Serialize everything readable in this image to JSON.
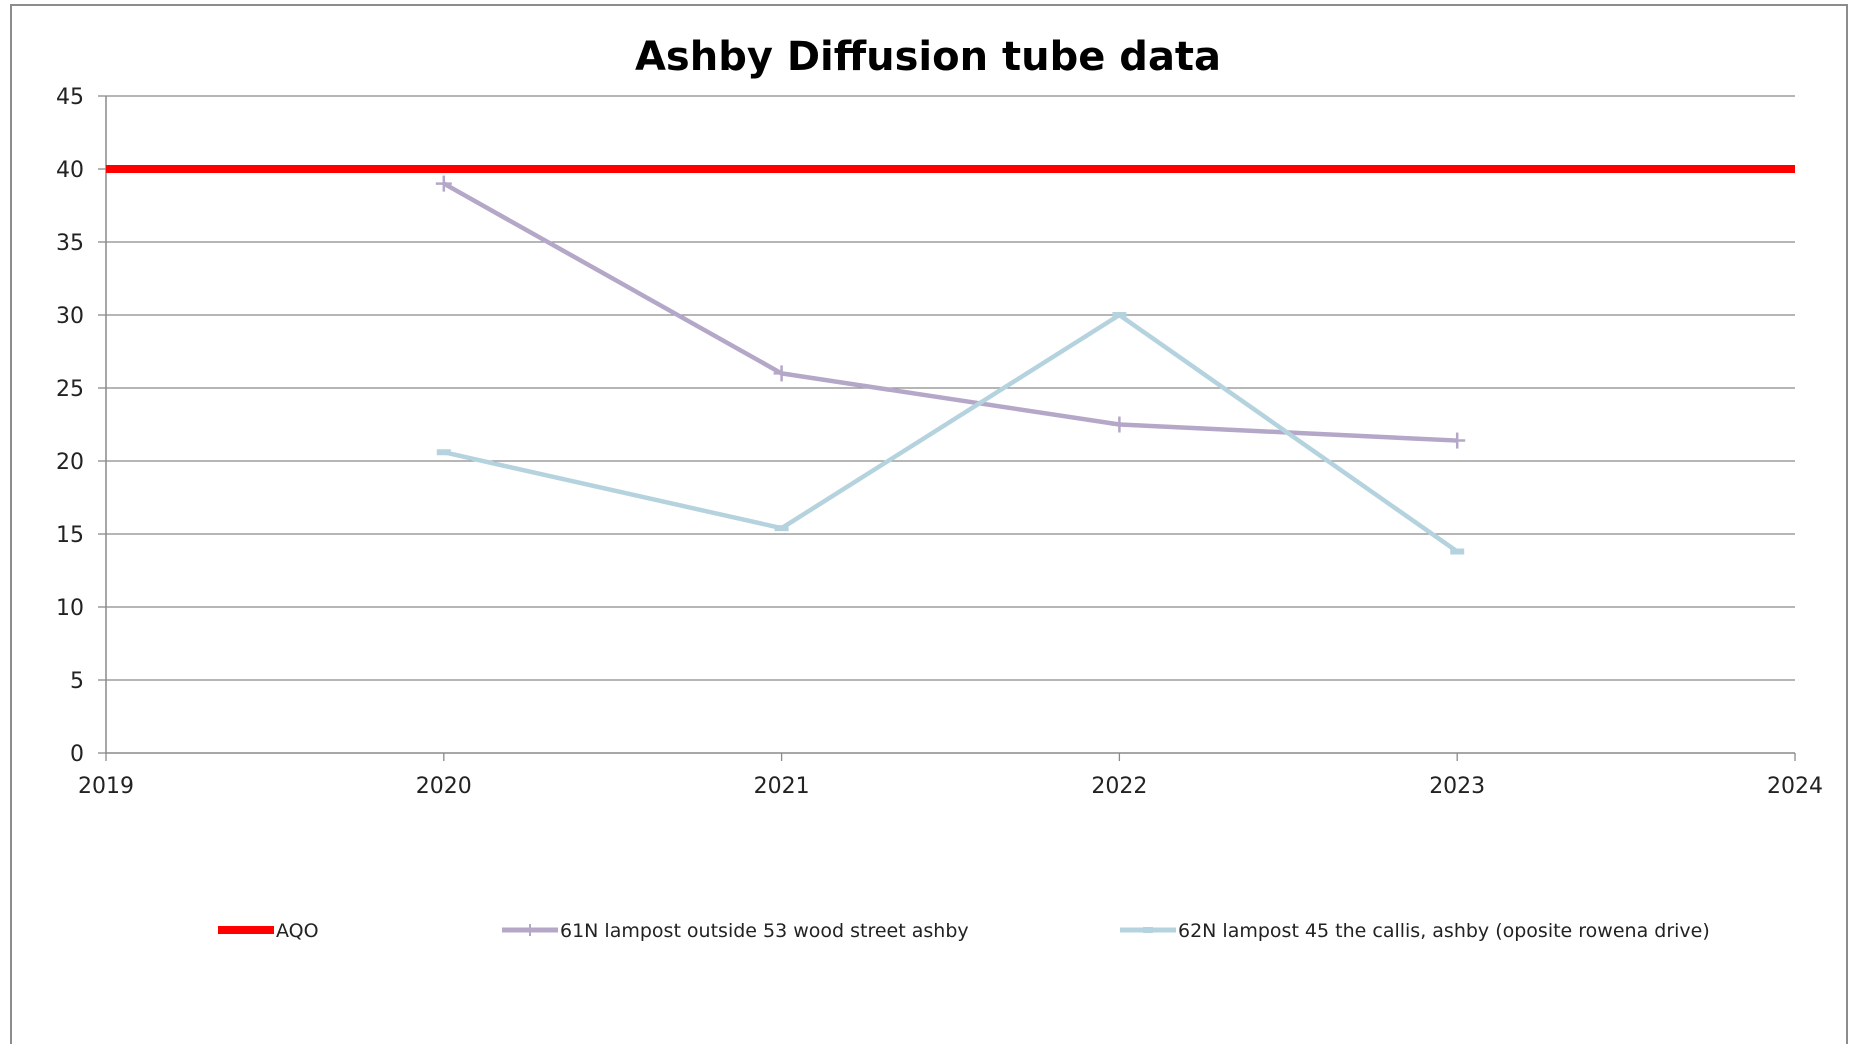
{
  "chart_data": {
    "type": "scatter",
    "title": "Ashby Diffusion tube data",
    "xlabel": "",
    "ylabel": "",
    "xlim": [
      2019,
      2024
    ],
    "ylim": [
      0,
      45
    ],
    "x_ticks": [
      "2019",
      "2020",
      "2021",
      "2022",
      "2023",
      "2024"
    ],
    "y_ticks": [
      "0",
      "5",
      "10",
      "15",
      "20",
      "25",
      "30",
      "35",
      "40",
      "45"
    ],
    "grid": "horizontal",
    "legend_position": "bottom",
    "series": [
      {
        "name": "AQO",
        "color": "#ff0000",
        "marker": "none",
        "points": [
          [
            2019,
            40
          ],
          [
            2024,
            40
          ]
        ]
      },
      {
        "name": "61N lampost outside 53 wood street ashby",
        "color": "#b4a7c8",
        "marker": "plus",
        "points": [
          [
            2020,
            39
          ],
          [
            2021,
            26
          ],
          [
            2022,
            22.5
          ],
          [
            2023,
            21.4
          ]
        ]
      },
      {
        "name": "62N lampost 45 the callis, ashby (oposite rowena drive)",
        "color": "#b5d3de",
        "marker": "dash",
        "points": [
          [
            2020,
            20.6
          ],
          [
            2021,
            15.4
          ],
          [
            2022,
            30
          ],
          [
            2023,
            13.8
          ]
        ]
      }
    ]
  }
}
